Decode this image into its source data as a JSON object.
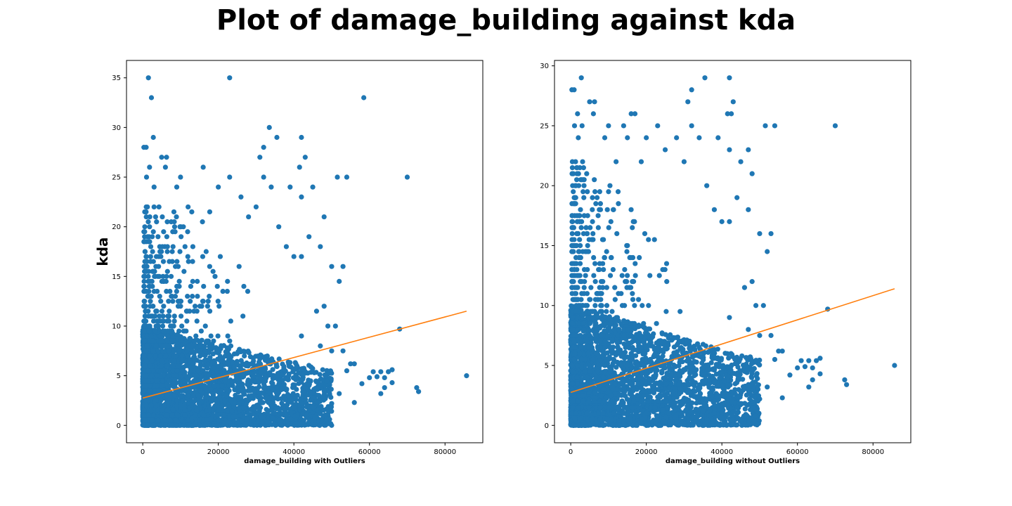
{
  "title": "Plot of damage_building against kda",
  "colors": {
    "points": "#1f77b4",
    "fit_line": "#ff7f0e",
    "axes": "#000000"
  },
  "chart_data": [
    {
      "type": "scatter",
      "title": "",
      "xlabel": "damage_building with Outliers",
      "ylabel": "kda",
      "xlim": [
        -4300,
        90000
      ],
      "ylim": [
        -1.75,
        36.75
      ],
      "xticks": [
        0,
        20000,
        40000,
        60000,
        80000
      ],
      "yticks": [
        0,
        5,
        10,
        15,
        20,
        25,
        30,
        35
      ],
      "fit_line": {
        "x": [
          0,
          85700
        ],
        "y": [
          2.75,
          11.5
        ]
      },
      "bulk_region": {
        "x_range": [
          0,
          50000
        ],
        "y_range": [
          0,
          10
        ]
      },
      "points": [
        [
          1500,
          35
        ],
        [
          23000,
          35
        ],
        [
          2300,
          33
        ],
        [
          58500,
          33
        ],
        [
          33500,
          30
        ],
        [
          2800,
          29
        ],
        [
          35500,
          29
        ],
        [
          42000,
          29
        ],
        [
          300,
          28
        ],
        [
          900,
          28
        ],
        [
          32000,
          28
        ],
        [
          5000,
          27
        ],
        [
          6300,
          27
        ],
        [
          31000,
          27
        ],
        [
          43000,
          27
        ],
        [
          1800,
          26
        ],
        [
          6000,
          26
        ],
        [
          16000,
          26
        ],
        [
          41500,
          26
        ],
        [
          45000,
          24
        ],
        [
          1000,
          25
        ],
        [
          10000,
          25
        ],
        [
          23000,
          25
        ],
        [
          32000,
          25
        ],
        [
          51500,
          25
        ],
        [
          54000,
          25
        ],
        [
          70000,
          25
        ],
        [
          3000,
          24
        ],
        [
          9000,
          24
        ],
        [
          20000,
          24
        ],
        [
          34000,
          24
        ],
        [
          39000,
          24
        ],
        [
          42000,
          23
        ],
        [
          26000,
          23
        ],
        [
          30000,
          22
        ],
        [
          12000,
          22
        ],
        [
          48000,
          21
        ],
        [
          28000,
          21
        ],
        [
          36000,
          20
        ],
        [
          44000,
          19
        ],
        [
          38000,
          18
        ],
        [
          47000,
          18
        ],
        [
          42000,
          17
        ],
        [
          40000,
          17
        ],
        [
          50000,
          16
        ],
        [
          53000,
          16
        ],
        [
          52000,
          14.5
        ],
        [
          48000,
          12
        ],
        [
          46000,
          11.5
        ],
        [
          49000,
          10
        ],
        [
          51000,
          10
        ],
        [
          42000,
          9
        ],
        [
          47000,
          8
        ],
        [
          50000,
          7.5
        ],
        [
          53000,
          7.5
        ],
        [
          55000,
          6.2
        ],
        [
          56000,
          6.2
        ],
        [
          54000,
          5.5
        ],
        [
          61000,
          5.4
        ],
        [
          63000,
          5.4
        ],
        [
          65000,
          5.4
        ],
        [
          66000,
          5.6
        ],
        [
          64000,
          4.8
        ],
        [
          66000,
          4.3
        ],
        [
          60000,
          4.8
        ],
        [
          62000,
          4.9
        ],
        [
          64000,
          3.8
        ],
        [
          63000,
          3.2
        ],
        [
          58000,
          4.2
        ],
        [
          72500,
          3.8
        ],
        [
          73000,
          3.4
        ],
        [
          68000,
          9.7
        ],
        [
          85700,
          5
        ],
        [
          56000,
          2.3
        ],
        [
          52000,
          3.2
        ],
        [
          50000,
          2.2
        ],
        [
          48000,
          3.5
        ],
        [
          47000,
          4.6
        ],
        [
          45000,
          2.8
        ],
        [
          44000,
          1.5
        ],
        [
          42000,
          2.2
        ],
        [
          40000,
          1.8
        ],
        [
          38000,
          1
        ],
        [
          36000,
          0.5
        ],
        [
          35000,
          1.2
        ],
        [
          33000,
          0.3
        ],
        [
          30000,
          0.1
        ],
        [
          25000,
          0.3
        ],
        [
          20000,
          0
        ]
      ]
    },
    {
      "type": "scatter",
      "title": "",
      "xlabel": "damage_building without Outliers",
      "ylabel": "",
      "xlim": [
        -4300,
        90000
      ],
      "ylim": [
        -1.45,
        30.45
      ],
      "xticks": [
        0,
        20000,
        40000,
        60000,
        80000
      ],
      "yticks": [
        0,
        5,
        10,
        15,
        20,
        25,
        30
      ],
      "fit_line": {
        "x": [
          0,
          85700
        ],
        "y": [
          2.75,
          11.4
        ]
      },
      "bulk_region": {
        "x_range": [
          0,
          50000
        ],
        "y_range": [
          0,
          10
        ]
      },
      "points": [
        [
          2800,
          29
        ],
        [
          35500,
          29
        ],
        [
          42000,
          29
        ],
        [
          300,
          28
        ],
        [
          900,
          28
        ],
        [
          32000,
          28
        ],
        [
          5000,
          27
        ],
        [
          6300,
          27
        ],
        [
          31000,
          27
        ],
        [
          43000,
          27
        ],
        [
          1800,
          26
        ],
        [
          6000,
          26
        ],
        [
          16000,
          26
        ],
        [
          17000,
          26
        ],
        [
          41500,
          26
        ],
        [
          42500,
          26
        ],
        [
          1000,
          25
        ],
        [
          3000,
          25
        ],
        [
          10000,
          25
        ],
        [
          14000,
          25
        ],
        [
          23000,
          25
        ],
        [
          32000,
          25
        ],
        [
          51500,
          25
        ],
        [
          54000,
          25
        ],
        [
          70000,
          25
        ],
        [
          2000,
          24
        ],
        [
          9000,
          24
        ],
        [
          15000,
          24
        ],
        [
          20000,
          24
        ],
        [
          28000,
          24
        ],
        [
          34000,
          24
        ],
        [
          39000,
          24
        ],
        [
          25000,
          23
        ],
        [
          42000,
          23
        ],
        [
          47000,
          23
        ],
        [
          12000,
          22
        ],
        [
          30000,
          22
        ],
        [
          45000,
          22
        ],
        [
          48000,
          21
        ],
        [
          36000,
          20
        ],
        [
          44000,
          19
        ],
        [
          38000,
          18
        ],
        [
          47000,
          18
        ],
        [
          40000,
          17
        ],
        [
          42000,
          17
        ],
        [
          50000,
          16
        ],
        [
          53000,
          16
        ],
        [
          52000,
          14.5
        ],
        [
          48000,
          12
        ],
        [
          46000,
          11.5
        ],
        [
          49000,
          10
        ],
        [
          51000,
          10
        ],
        [
          42000,
          9
        ],
        [
          47000,
          8
        ],
        [
          50000,
          7.5
        ],
        [
          53000,
          7.5
        ],
        [
          55000,
          6.2
        ],
        [
          56000,
          6.2
        ],
        [
          54000,
          5.5
        ],
        [
          61000,
          5.4
        ],
        [
          63000,
          5.4
        ],
        [
          65000,
          5.4
        ],
        [
          66000,
          5.6
        ],
        [
          64000,
          4.8
        ],
        [
          66000,
          4.3
        ],
        [
          60000,
          4.8
        ],
        [
          62000,
          4.9
        ],
        [
          64000,
          3.8
        ],
        [
          63000,
          3.2
        ],
        [
          58000,
          4.2
        ],
        [
          72500,
          3.8
        ],
        [
          73000,
          3.4
        ],
        [
          68000,
          9.7
        ],
        [
          85700,
          5
        ],
        [
          56000,
          2.3
        ],
        [
          52000,
          3.2
        ],
        [
          50000,
          2.2
        ],
        [
          48000,
          3.5
        ],
        [
          47000,
          4.6
        ],
        [
          45000,
          2.8
        ],
        [
          44000,
          1.5
        ],
        [
          42000,
          2.2
        ],
        [
          40000,
          1.8
        ],
        [
          38000,
          1
        ],
        [
          36000,
          0.5
        ],
        [
          35000,
          1.2
        ],
        [
          33000,
          0.3
        ],
        [
          30000,
          0.1
        ],
        [
          25000,
          0.3
        ],
        [
          20000,
          0
        ]
      ]
    }
  ]
}
